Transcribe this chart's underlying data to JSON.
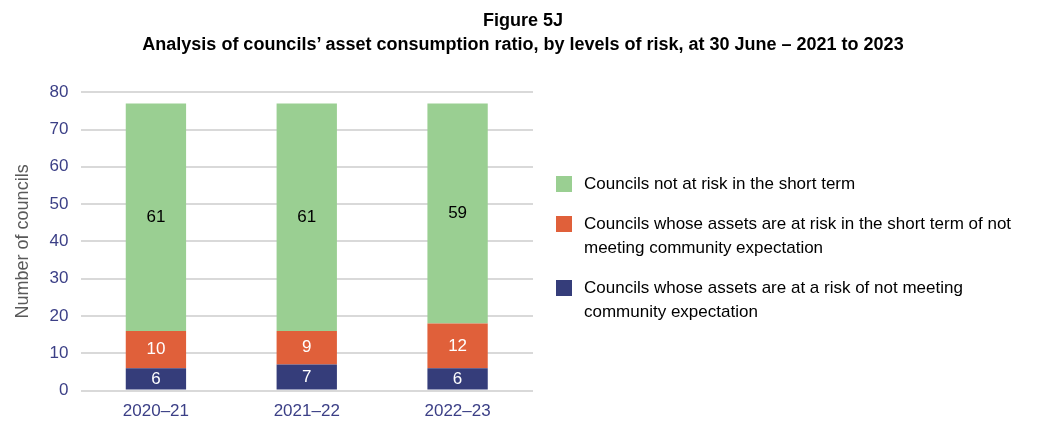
{
  "chart_data": {
    "type": "bar",
    "title": "Figure 5J",
    "subtitle": "Analysis of councils’ asset consumption ratio, by levels of risk, at 30 June – 2021 to 2023",
    "ylabel": "Number of councils",
    "categories": [
      "2020–21",
      "2021–22",
      "2022–23"
    ],
    "stacked": true,
    "series": [
      {
        "name": "Councils whose assets are at a risk of not meeting community expectation",
        "color": "#353d7a",
        "values": [
          6,
          7,
          6
        ]
      },
      {
        "name": "Councils whose assets are at risk in the short term of not meeting community expectation",
        "color": "#e0603a",
        "values": [
          10,
          9,
          12
        ]
      },
      {
        "name": "Councils not at risk in the short term",
        "color": "#9acf92",
        "values": [
          61,
          61,
          59
        ]
      }
    ],
    "ylim": [
      0,
      80
    ],
    "yticks": [
      0,
      10,
      20,
      30,
      40,
      50,
      60,
      70,
      80
    ],
    "grid": "y",
    "legend": "right",
    "data_labels": true
  }
}
